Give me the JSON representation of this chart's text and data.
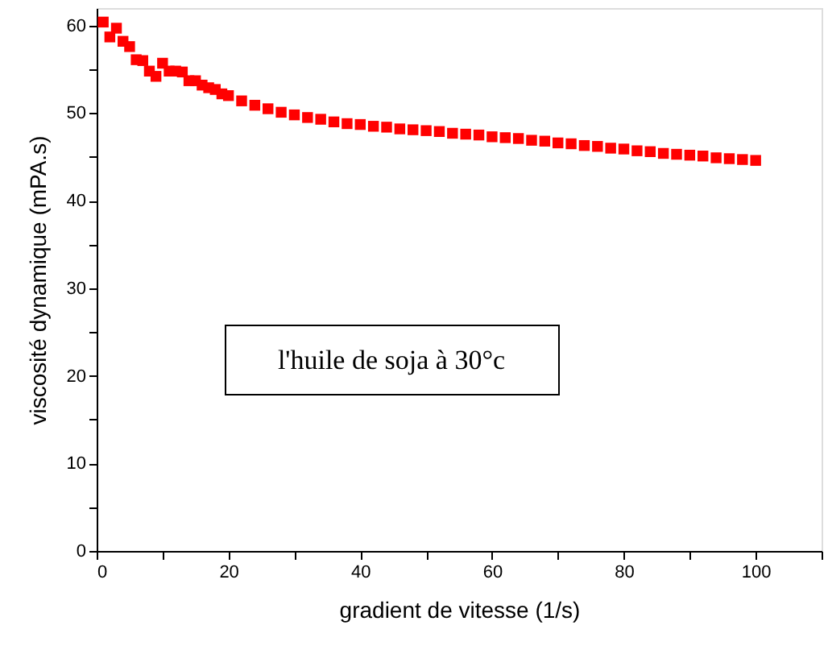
{
  "chart_data": {
    "type": "scatter",
    "xlabel": "gradient de vitesse (1/s)",
    "ylabel": "viscosité dynamique (mPA.s)",
    "annotations": [
      "l'huile de soja à 30°c"
    ],
    "marker": "square",
    "grid": false,
    "xlim": [
      0,
      110
    ],
    "ylim": [
      0,
      62
    ],
    "xticks": [
      0,
      {
        "value": 10,
        "label": null
      },
      20,
      {
        "value": 30,
        "label": null
      },
      40,
      {
        "value": 50,
        "label": null
      },
      60,
      {
        "value": 70,
        "label": null
      },
      80,
      {
        "value": 90,
        "label": null
      },
      100,
      {
        "value": 110,
        "label": null
      }
    ],
    "yticks": [
      0,
      {
        "value": 5,
        "label": null
      },
      10,
      {
        "value": 15,
        "label": null
      },
      20,
      {
        "value": 25,
        "label": null
      },
      30,
      {
        "value": 35,
        "label": null
      },
      40,
      {
        "value": 45,
        "label": null
      },
      50,
      {
        "value": 55,
        "label": null
      },
      60
    ],
    "series": [
      {
        "color": "#ff0000",
        "x": [
          1,
          2,
          3,
          4,
          5,
          6,
          7,
          8,
          9,
          10,
          11,
          12,
          13,
          14,
          15,
          16,
          17,
          18,
          19,
          20,
          22,
          24,
          26,
          28,
          30,
          32,
          34,
          36,
          38,
          40,
          42,
          44,
          46,
          48,
          50,
          52,
          54,
          56,
          58,
          60,
          62,
          64,
          66,
          68,
          70,
          72,
          74,
          76,
          78,
          80,
          82,
          84,
          86,
          88,
          90,
          92,
          94,
          96,
          98,
          100
        ],
        "values": [
          60.4,
          58.7,
          59.7,
          58.2,
          57.6,
          56.1,
          56.0,
          54.8,
          54.2,
          55.7,
          54.8,
          54.8,
          54.7,
          53.7,
          53.7,
          53.2,
          52.9,
          52.7,
          52.2,
          52.0,
          51.4,
          50.9,
          50.5,
          50.1,
          49.8,
          49.5,
          49.3,
          49.0,
          48.8,
          48.7,
          48.5,
          48.4,
          48.2,
          48.1,
          48.0,
          47.9,
          47.7,
          47.6,
          47.5,
          47.3,
          47.2,
          47.1,
          46.9,
          46.8,
          46.6,
          46.5,
          46.3,
          46.2,
          46.0,
          45.9,
          45.7,
          45.6,
          45.4,
          45.3,
          45.2,
          45.1,
          44.9,
          44.8,
          44.7,
          44.6
        ]
      }
    ]
  }
}
